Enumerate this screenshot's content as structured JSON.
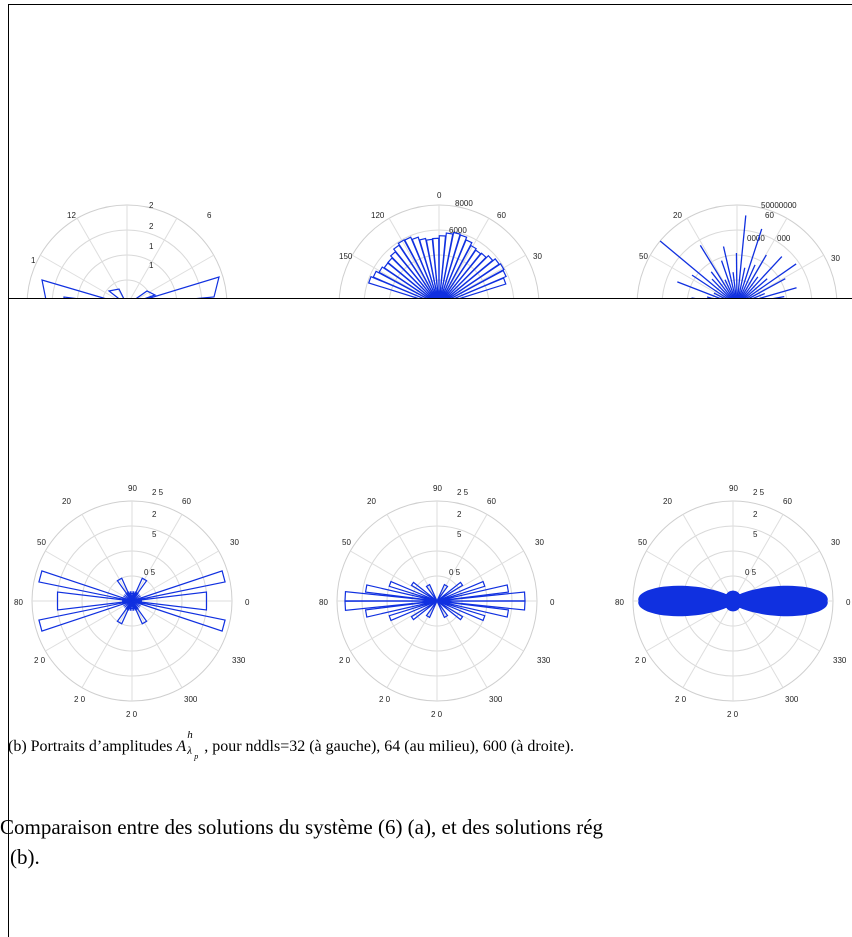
{
  "figure_a": {
    "plots": [
      {
        "labels": [
          "2",
          "12",
          "6",
          "2",
          "1",
          "1",
          "1",
          "1"
        ],
        "petals": [
          0.72,
          0.2,
          0.12,
          0.15,
          0.72
        ]
      },
      {
        "labels": [
          "0",
          "8000",
          "120",
          "60",
          "6000",
          "150",
          "30"
        ],
        "petals": []
      },
      {
        "labels": [
          "50000000",
          "20",
          "60",
          "0000",
          "000",
          "50",
          "30"
        ],
        "petals": []
      }
    ]
  },
  "figure_b": {
    "plots": [
      {
        "labels": [
          "90",
          "2 5",
          "20",
          "60",
          "2",
          "5",
          "50",
          "30",
          "0 5",
          "80",
          "0",
          "2 0",
          "330",
          "2 0",
          "300",
          "2 0"
        ]
      },
      {
        "labels": [
          "90",
          "2 5",
          "20",
          "60",
          "2",
          "5",
          "50",
          "30",
          "0 5",
          "80",
          "0",
          "2 0",
          "330",
          "2 0",
          "300",
          "2 0"
        ]
      },
      {
        "labels": [
          "90",
          "2 5",
          "20",
          "60",
          "2",
          "5",
          "50",
          "30",
          "0 5",
          "80",
          "0",
          "2 0",
          "330",
          "2 0",
          "300",
          "2 0"
        ]
      }
    ]
  },
  "caption": {
    "prefix": "(b)  Portraits d’amplitudes ",
    "symbol": "A",
    "sup": "h",
    "sub": "λ",
    "subsub": "p",
    "suffix": " , pour nddls=32 (à gauche), 64 (au milieu), 600 (à droite)."
  },
  "body_text": {
    "line1": "Comparaison entre des solutions du système (6) (a), et des solutions rég",
    "line2": "(b)."
  },
  "colors": {
    "accent": "#1030e0"
  }
}
